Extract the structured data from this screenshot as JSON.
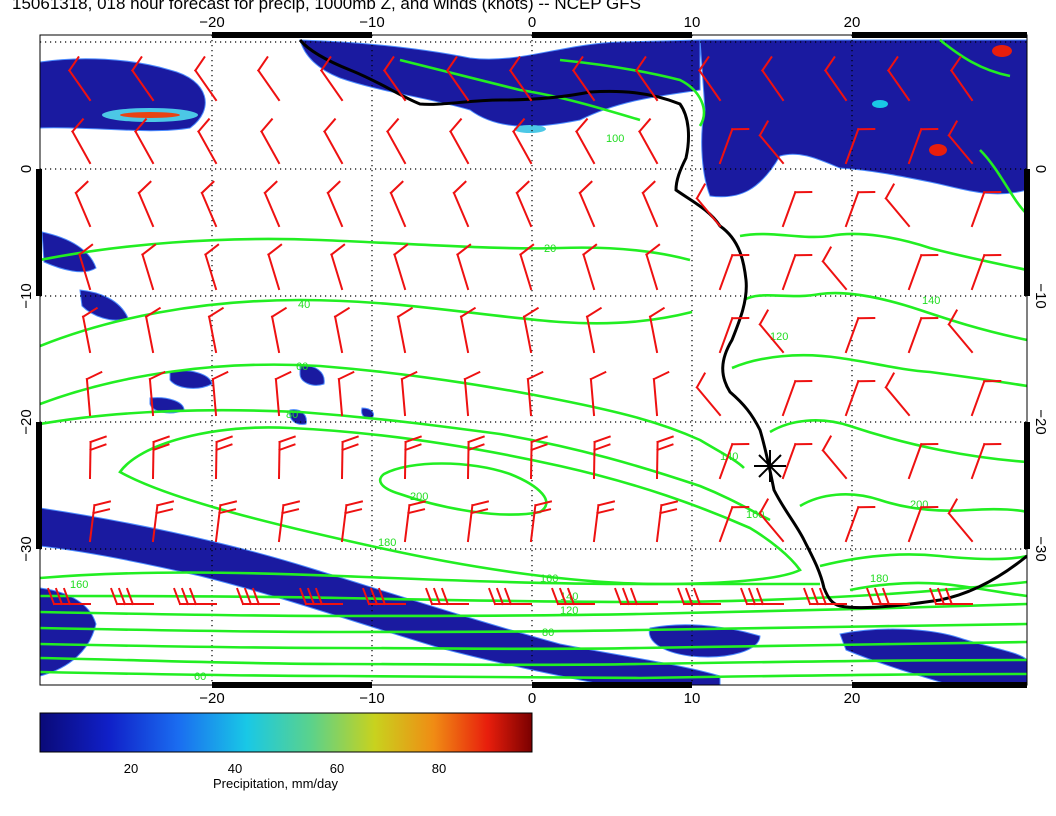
{
  "title": "15061318, 018 hour forecast for precip, 1000mb Z, and winds (knots) -- NCEP GFS",
  "map": {
    "lon_ticks": [
      "−20",
      "−10",
      "0",
      "10",
      "20"
    ],
    "lat_ticks": [
      "0",
      "−10",
      "−20",
      "−30"
    ],
    "contour_labels": [
      "20",
      "40",
      "60",
      "80",
      "100",
      "120",
      "140",
      "160",
      "180",
      "200",
      "60",
      "80",
      "120",
      "140",
      "160",
      "180",
      "200",
      "140",
      "160"
    ],
    "colors": {
      "contour": "#22ee22",
      "barb": "#ee1111",
      "coast": "#000000",
      "precip_low": "#1a1aa0",
      "precip_mid": "#4c8cff"
    },
    "marker_symbol": "asterisk"
  },
  "colorbar": {
    "ticks": [
      "20",
      "40",
      "60",
      "80"
    ],
    "label": "Precipitation, mm/day",
    "colors": [
      "#0a0a78",
      "#1020c8",
      "#1a6cf0",
      "#19c8e6",
      "#5ad28c",
      "#c8d21e",
      "#f08c14",
      "#e81e0c",
      "#7a0000"
    ]
  }
}
